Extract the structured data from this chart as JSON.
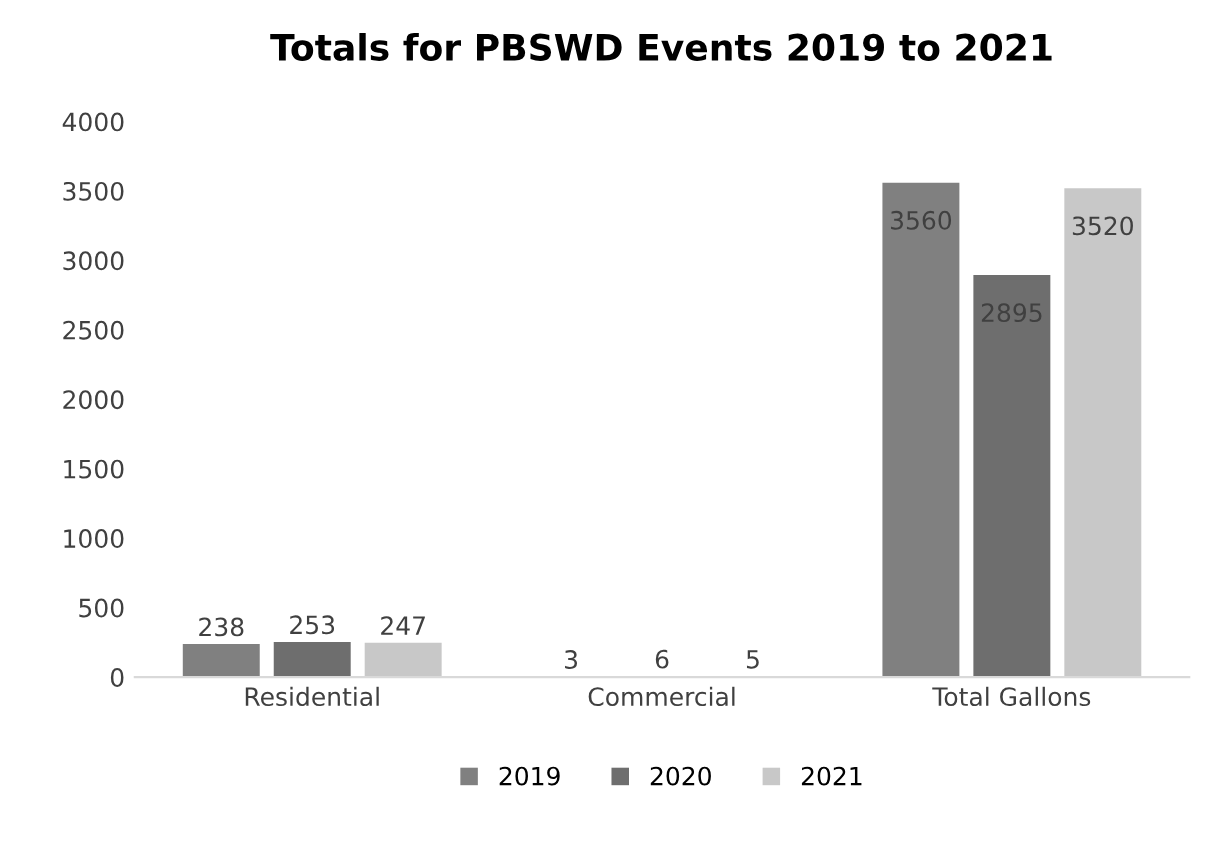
{
  "chart_data": {
    "type": "bar",
    "title": "Totals for PBSWD Events 2019 to 2021",
    "categories": [
      "Residential",
      "Commercial",
      "Total Gallons"
    ],
    "series": [
      {
        "name": "2019",
        "color": "#808080",
        "values": [
          238,
          3,
          3560
        ]
      },
      {
        "name": "2020",
        "color": "#6e6e6e",
        "values": [
          253,
          6,
          2895
        ]
      },
      {
        "name": "2021",
        "color": "#c8c8c8",
        "values": [
          247,
          5,
          3520
        ]
      }
    ],
    "ylim": [
      0,
      4000
    ],
    "yticks": [
      0,
      500,
      1000,
      1500,
      2000,
      2500,
      3000,
      3500,
      4000
    ],
    "grid": false,
    "legend": "bottom",
    "data_labels": true
  }
}
